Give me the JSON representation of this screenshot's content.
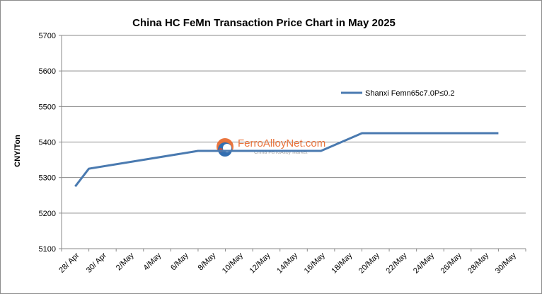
{
  "chart_data": {
    "type": "line",
    "title": "China HC FeMn Transaction Price Chart in May 2025",
    "ylabel": "CNY/Ton",
    "xlabel": "",
    "ylim": [
      5100,
      5700
    ],
    "yticks": [
      5100,
      5200,
      5300,
      5400,
      5500,
      5600,
      5700
    ],
    "x_ticks": [
      "28/ Apr",
      "30/ Apr",
      "2/May",
      "4/May",
      "6/May",
      "8/May",
      "10/May",
      "12/May",
      "14/May",
      "16/May",
      "18/May",
      "20/May",
      "22/May",
      "24/May",
      "26/May",
      "28/May",
      "30/May"
    ],
    "grid": true,
    "legend_position": "top-right",
    "series": [
      {
        "name": "Shanxi Femn65c7.0P≤0.2",
        "color": "#4a7ab0",
        "points": [
          {
            "x": "28/ Apr",
            "y": 5275
          },
          {
            "x": "29/ Apr",
            "y": 5325
          },
          {
            "x": "7/May",
            "y": 5375
          },
          {
            "x": "16/May",
            "y": 5375
          },
          {
            "x": "19/May",
            "y": 5425
          },
          {
            "x": "29/May",
            "y": 5425
          }
        ]
      }
    ]
  },
  "watermark": {
    "main": "FerroAlloyNet.com",
    "sub": "China FerroAlloy Market",
    "logo_colors": [
      "#e8672a",
      "#1e5fa8",
      "#c0392b"
    ]
  }
}
